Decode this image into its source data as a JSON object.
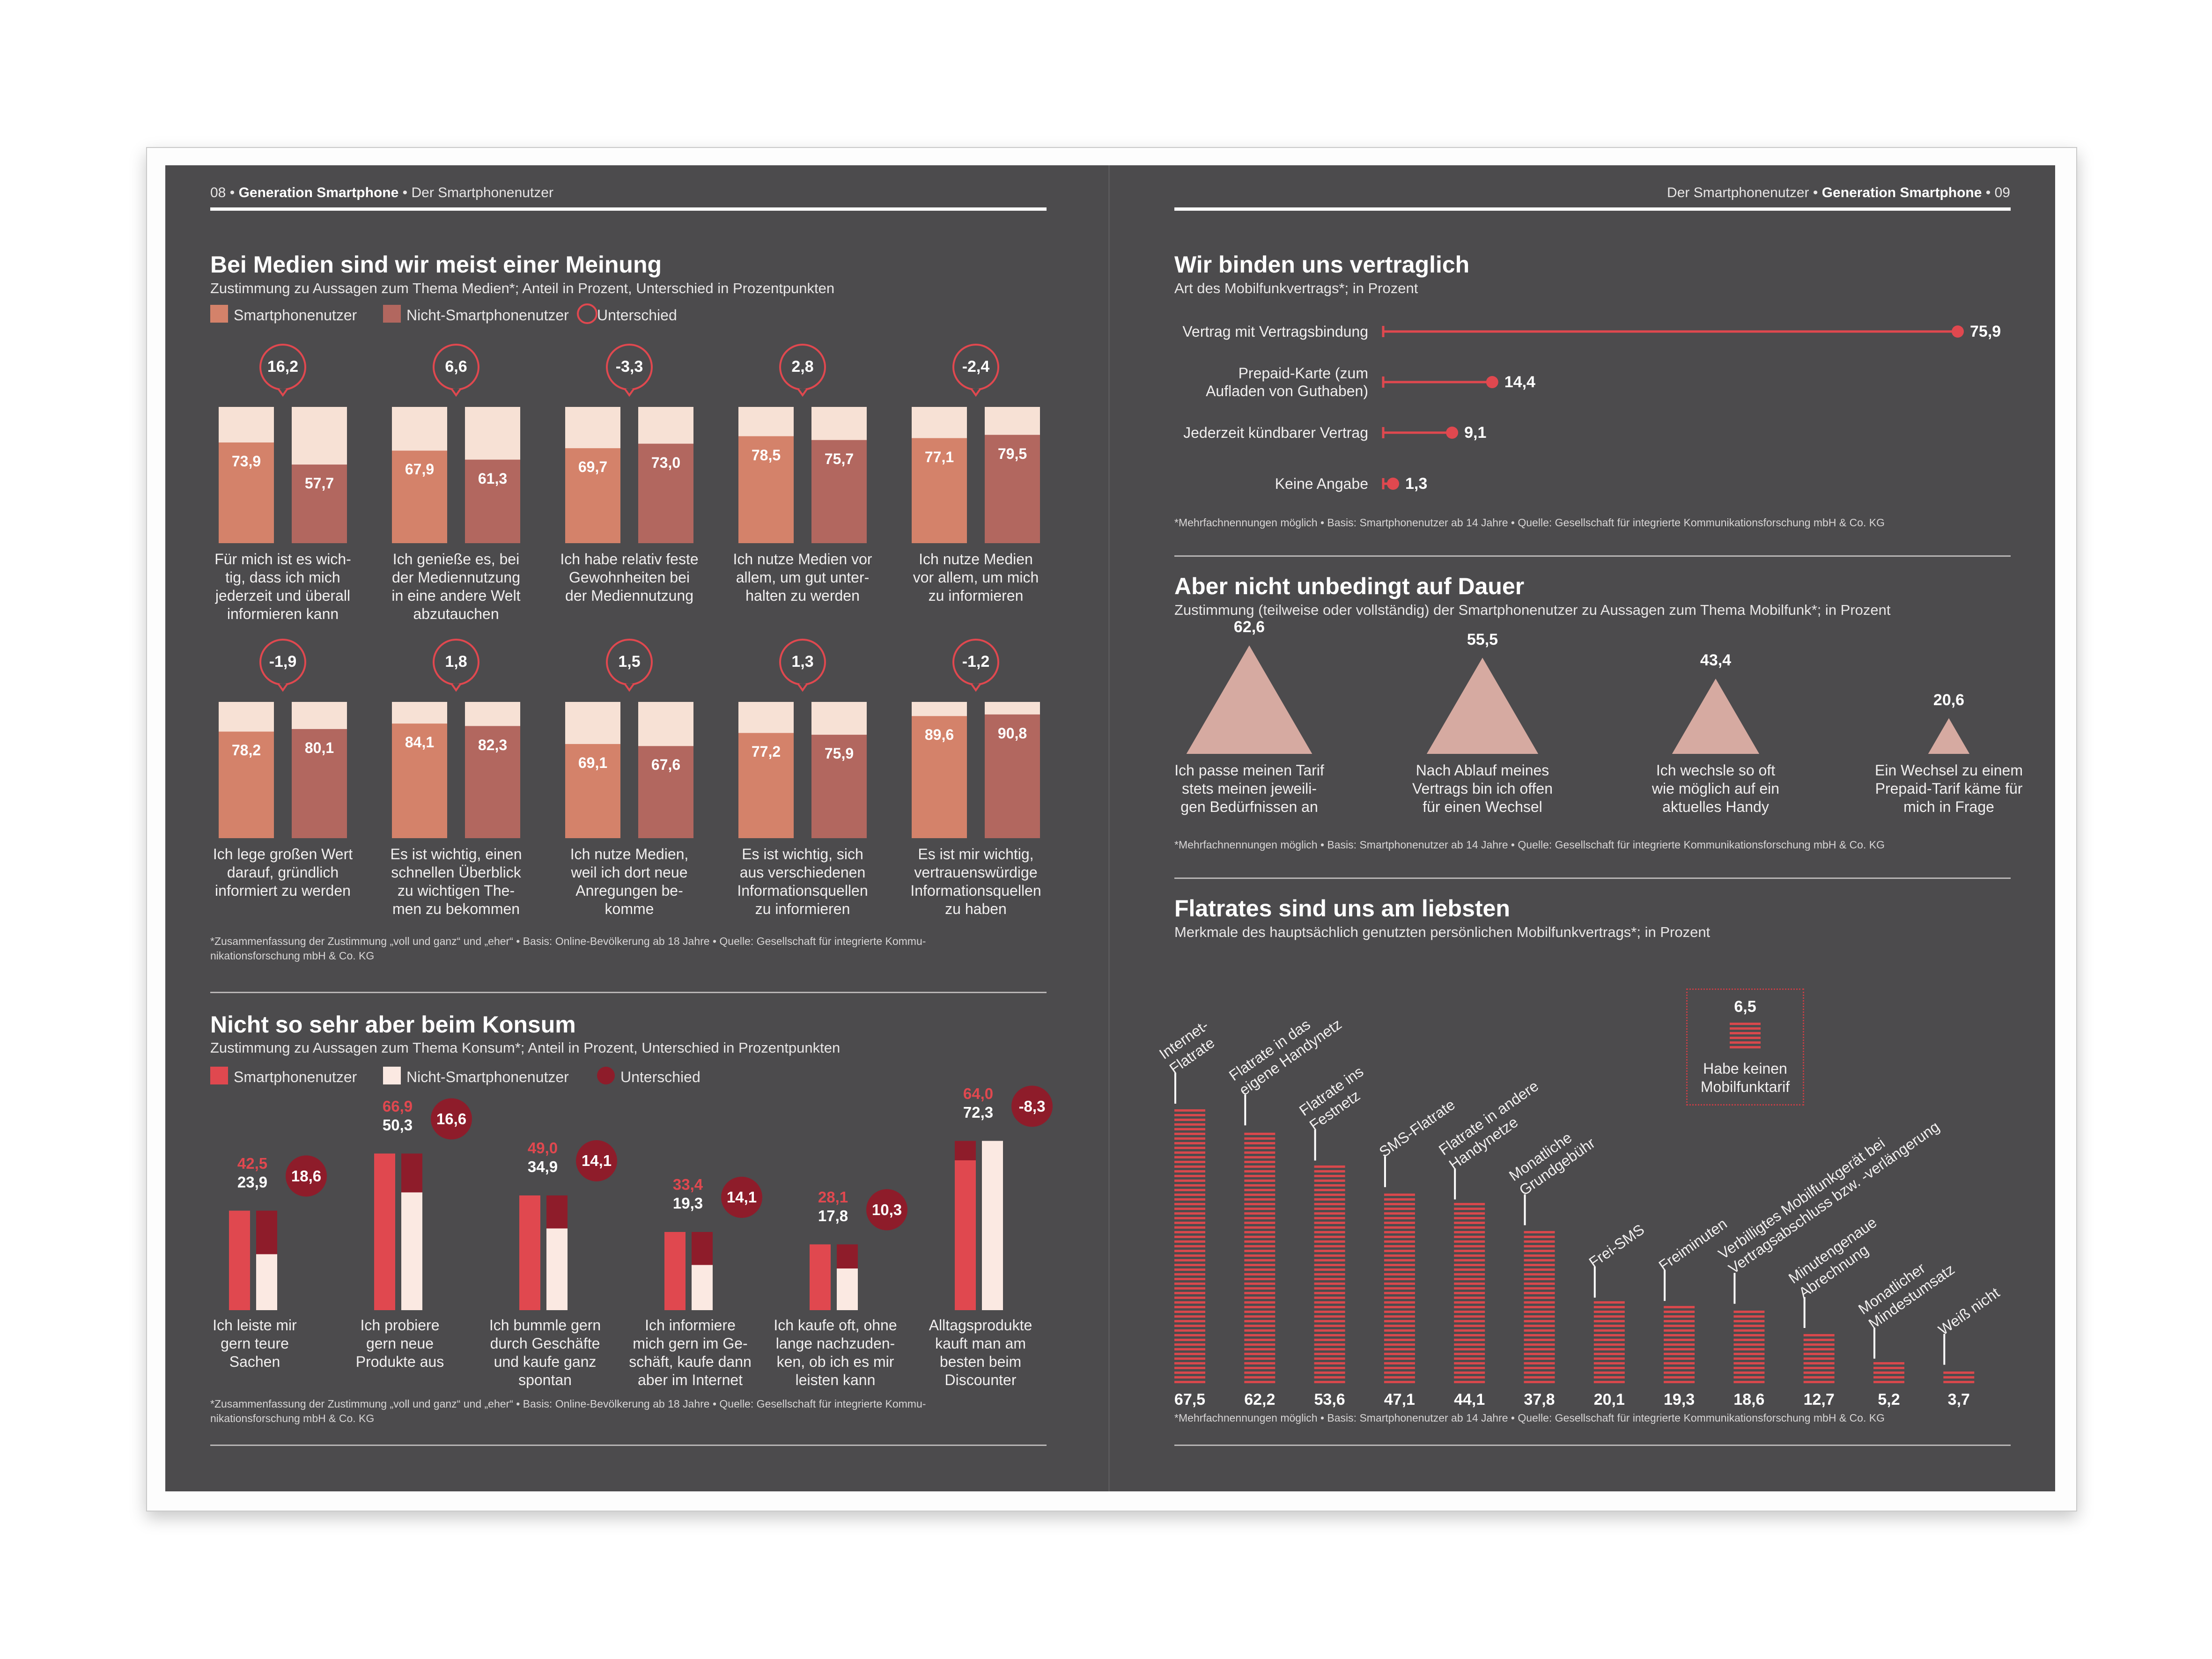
{
  "colors": {
    "background": "#4c4b4d",
    "salmon": "#d4826a",
    "pale": "#f7e1d5",
    "rose": "#b2675f",
    "red": "#e0484f",
    "darkred": "#8e1c2a",
    "nonsm": "#fbe9e2",
    "triangle": "#d6aaa1",
    "stripe": "#d9484c"
  },
  "left_header": {
    "page": "08",
    "section": "Generation Smartphone",
    "sub": "Der Smartphonenutzer"
  },
  "right_header": {
    "page": "09",
    "section": "Generation Smartphone",
    "sub": "Der Smartphonenutzer"
  },
  "medien": {
    "title": "Bei Medien sind wir meist einer Meinung",
    "subtitle": "Zustimmung zu Aussagen zum Thema Medien*; Anteil in Prozent, Unterschied in Prozentpunkten",
    "legend": [
      "Smartphonenutzer",
      "Nicht-Smartphonenutzer",
      "Unterschied"
    ],
    "footnote": [
      "*Zusammenfassung der Zustimmung „voll und ganz“ und „eher“ • Basis: Online-Bevölkerung ab 18 Jahre • Quelle: Gesellschaft für integrierte Kommu-",
      "nikationsforschung mbH & Co. KG"
    ]
  },
  "konsum": {
    "title": "Nicht so sehr aber beim Konsum",
    "subtitle": "Zustimmung zu Aussagen zum Thema Konsum*; Anteil in Prozent, Unterschied in Prozentpunkten",
    "legend": [
      "Smartphonenutzer",
      "Nicht-Smartphonenutzer",
      "Unterschied"
    ],
    "footnote": [
      "*Zusammenfassung der Zustimmung „voll und ganz“ und „eher“ • Basis: Online-Bevölkerung ab 18 Jahre • Quelle: Gesellschaft für integrierte Kommu-",
      "nikationsforschung mbH & Co. KG"
    ]
  },
  "vertrag": {
    "title": "Wir binden uns vertraglich",
    "subtitle": "Art des Mobilfunkvertrags*; in Prozent",
    "footnote": "*Mehrfachnennungen möglich • Basis: Smartphonenutzer ab 14 Jahre • Quelle: Gesellschaft für integrierte Kommunikationsforschung mbH & Co. KG"
  },
  "dauer": {
    "title": "Aber nicht unbedingt auf Dauer",
    "subtitle": "Zustimmung (teilweise oder vollständig) der Smartphonenutzer zu Aussagen zum Thema Mobilfunk*; in Prozent",
    "footnote": "*Mehrfachnennungen möglich • Basis: Smartphonenutzer ab 14 Jahre • Quelle: Gesellschaft für integrierte Kommunikationsforschung mbH & Co. KG"
  },
  "flat": {
    "title": "Flatrates sind uns am liebsten",
    "subtitle": "Merkmale des hauptsächlich genutzten persönlichen Mobilfunkvertrags*; in Prozent",
    "footnote": "*Mehrfachnennungen möglich • Basis: Smartphonenutzer ab 14 Jahre • Quelle: Gesellschaft für integrierte Kommunikationsforschung mbH & Co. KG",
    "none_value": "6,5",
    "none_label": [
      "Habe keinen",
      "Mobilfunktarif"
    ]
  },
  "chart_data": [
    {
      "id": "medien",
      "type": "bar",
      "ylim": [
        0,
        100
      ],
      "title": "Bei Medien sind wir meist einer Meinung",
      "series": [
        {
          "name": "Smartphonenutzer"
        },
        {
          "name": "Nicht-Smartphonenutzer"
        }
      ],
      "items": [
        {
          "sm": 73.9,
          "nsm": 57.7,
          "sm_t": "73,9",
          "nsm_t": "57,7",
          "diff": "16,2",
          "label": [
            "Für mich ist es wich-",
            "tig, dass ich mich",
            "jederzeit und überall",
            "informieren kann"
          ]
        },
        {
          "sm": 67.9,
          "nsm": 61.3,
          "sm_t": "67,9",
          "nsm_t": "61,3",
          "diff": "6,6",
          "label": [
            "Ich genieße es, bei",
            "der Mediennutzung",
            "in eine andere Welt",
            "abzutauchen"
          ]
        },
        {
          "sm": 69.7,
          "nsm": 73.0,
          "sm_t": "69,7",
          "nsm_t": "73,0",
          "diff": "-3,3",
          "label": [
            "Ich habe relativ feste",
            "Gewohnheiten bei",
            "der Mediennutzung"
          ]
        },
        {
          "sm": 78.5,
          "nsm": 75.7,
          "sm_t": "78,5",
          "nsm_t": "75,7",
          "diff": "2,8",
          "label": [
            "Ich nutze Medien vor",
            "allem, um gut unter-",
            "halten zu werden"
          ]
        },
        {
          "sm": 77.1,
          "nsm": 79.5,
          "sm_t": "77,1",
          "nsm_t": "79,5",
          "diff": "-2,4",
          "label": [
            "Ich nutze Medien",
            "vor allem, um mich",
            "zu informieren"
          ]
        },
        {
          "sm": 78.2,
          "nsm": 80.1,
          "sm_t": "78,2",
          "nsm_t": "80,1",
          "diff": "-1,9",
          "label": [
            "Ich lege großen Wert",
            "darauf, gründlich",
            "informiert zu werden"
          ]
        },
        {
          "sm": 84.1,
          "nsm": 82.3,
          "sm_t": "84,1",
          "nsm_t": "82,3",
          "diff": "1,8",
          "label": [
            "Es ist wichtig, einen",
            "schnellen Überblick",
            "zu wichtigen The-",
            "men zu bekommen"
          ]
        },
        {
          "sm": 69.1,
          "nsm": 67.6,
          "sm_t": "69,1",
          "nsm_t": "67,6",
          "diff": "1,5",
          "label": [
            "Ich nutze Medien,",
            "weil ich dort neue",
            "Anregungen be-",
            "komme"
          ]
        },
        {
          "sm": 77.2,
          "nsm": 75.9,
          "sm_t": "77,2",
          "nsm_t": "75,9",
          "diff": "1,3",
          "label": [
            "Es ist wichtig, sich",
            "aus verschiedenen",
            "Informationsquellen",
            "zu informieren"
          ]
        },
        {
          "sm": 89.6,
          "nsm": 90.8,
          "sm_t": "89,6",
          "nsm_t": "90,8",
          "diff": "-1,2",
          "label": [
            "Es ist mir wichtig,",
            "vertrauenswürdige",
            "Informationsquellen",
            "zu haben"
          ]
        }
      ]
    },
    {
      "id": "konsum",
      "type": "bar",
      "ylim": [
        0,
        80
      ],
      "title": "Nicht so sehr aber beim Konsum",
      "series": [
        {
          "name": "Smartphonenutzer"
        },
        {
          "name": "Nicht-Smartphonenutzer"
        },
        {
          "name": "Unterschied"
        }
      ],
      "items": [
        {
          "sm": 42.5,
          "nsm": 23.9,
          "sm_t": "42,5",
          "nsm_t": "23,9",
          "diff": "18,6",
          "label": [
            "Ich leiste mir",
            "gern teure",
            "Sachen"
          ]
        },
        {
          "sm": 66.9,
          "nsm": 50.3,
          "sm_t": "66,9",
          "nsm_t": "50,3",
          "diff": "16,6",
          "label": [
            "Ich probiere",
            "gern neue",
            "Produkte aus"
          ]
        },
        {
          "sm": 49.0,
          "nsm": 34.9,
          "sm_t": "49,0",
          "nsm_t": "34,9",
          "diff": "14,1",
          "label": [
            "Ich bummle gern",
            "durch Geschäfte",
            "und kaufe ganz",
            "spontan"
          ]
        },
        {
          "sm": 33.4,
          "nsm": 19.3,
          "sm_t": "33,4",
          "nsm_t": "19,3",
          "diff": "14,1",
          "label": [
            "Ich informiere",
            "mich gern im Ge-",
            "schäft, kaufe dann",
            "aber im Internet"
          ]
        },
        {
          "sm": 28.1,
          "nsm": 17.8,
          "sm_t": "28,1",
          "nsm_t": "17,8",
          "diff": "10,3",
          "label": [
            "Ich kaufe oft, ohne",
            "lange nachzuden-",
            "ken, ob ich es mir",
            "leisten kann"
          ]
        },
        {
          "sm": 64.0,
          "nsm": 72.3,
          "sm_t": "64,0",
          "nsm_t": "72,3",
          "diff": "-8,3",
          "label": [
            "Alltagsprodukte",
            "kauft man am",
            "besten beim",
            "Discounter"
          ]
        }
      ]
    },
    {
      "id": "vertrag",
      "type": "bar",
      "xlim": [
        0,
        75.9
      ],
      "title": "Wir binden uns vertraglich",
      "items": [
        {
          "v": 75.9,
          "t": "75,9",
          "label": [
            "Vertrag mit Vertragsbindung"
          ]
        },
        {
          "v": 14.4,
          "t": "14,4",
          "label": [
            "Prepaid-Karte (zum",
            "Aufladen von Guthaben)"
          ]
        },
        {
          "v": 9.1,
          "t": "9,1",
          "label": [
            "Jederzeit kündbarer Vertrag"
          ]
        },
        {
          "v": 1.3,
          "t": "1,3",
          "label": [
            "Keine Angabe"
          ]
        }
      ]
    },
    {
      "id": "dauer",
      "type": "bar",
      "title": "Aber nicht unbedingt auf Dauer",
      "items": [
        {
          "v": 62.6,
          "t": "62,6",
          "label": [
            "Ich passe meinen Tarif",
            "stets meinen jeweili-",
            "gen Bedürfnissen an"
          ]
        },
        {
          "v": 55.5,
          "t": "55,5",
          "label": [
            "Nach Ablauf meines",
            "Vertrags bin ich offen",
            "für einen Wechsel"
          ]
        },
        {
          "v": 43.4,
          "t": "43,4",
          "label": [
            "Ich wechsle so oft",
            "wie möglich auf ein",
            "aktuelles Handy"
          ]
        },
        {
          "v": 20.6,
          "t": "20,6",
          "label": [
            "Ein Wechsel zu einem",
            "Prepaid-Tarif käme für",
            "mich in Frage"
          ]
        }
      ]
    },
    {
      "id": "flat",
      "type": "bar",
      "ylim": [
        0,
        67.5
      ],
      "title": "Flatrates sind uns am liebsten",
      "items": [
        {
          "v": 67.5,
          "t": "67,5",
          "label": [
            "Internet-",
            "Flatrate"
          ]
        },
        {
          "v": 62.2,
          "t": "62,2",
          "label": [
            "Flatrate in das",
            "eigene Handynetz"
          ]
        },
        {
          "v": 53.6,
          "t": "53,6",
          "label": [
            "Flatrate ins",
            "Festnetz"
          ]
        },
        {
          "v": 47.1,
          "t": "47,1",
          "label": [
            "SMS-Flatrate"
          ]
        },
        {
          "v": 44.1,
          "t": "44,1",
          "label": [
            "Flatrate in andere",
            "Handynetze"
          ]
        },
        {
          "v": 37.8,
          "t": "37,8",
          "label": [
            "Monatliche",
            "Grundgebühr"
          ]
        },
        {
          "v": 20.1,
          "t": "20,1",
          "label": [
            "Frei-SMS"
          ]
        },
        {
          "v": 19.3,
          "t": "19,3",
          "label": [
            "Freiminuten"
          ]
        },
        {
          "v": 18.6,
          "t": "18,6",
          "label": [
            "Verbilligtes Mobilfunkgerät bei",
            "Vertragsabschluss bzw. -verlängerung"
          ]
        },
        {
          "v": 12.7,
          "t": "12,7",
          "label": [
            "Minutengenaue",
            "Abrechnung"
          ]
        },
        {
          "v": 5.2,
          "t": "5,2",
          "label": [
            "Monatlicher",
            "Mindestumsatz"
          ]
        },
        {
          "v": 3.7,
          "t": "3,7",
          "label": [
            "Weiß nicht"
          ]
        }
      ]
    }
  ]
}
